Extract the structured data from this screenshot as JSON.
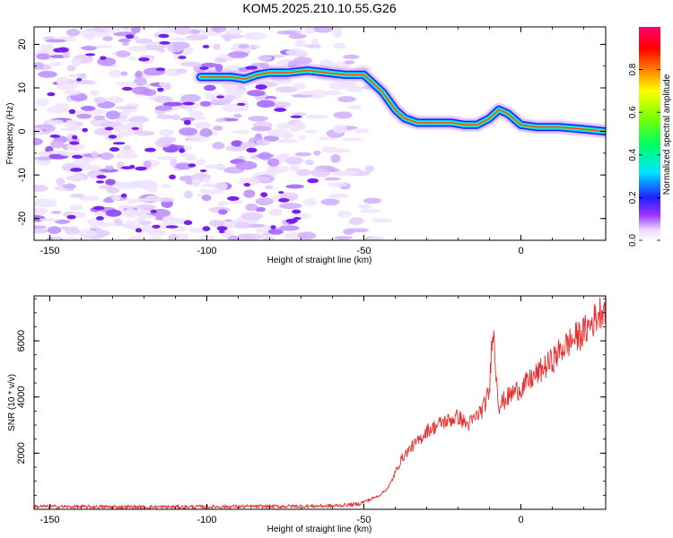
{
  "title": "KOM5.2025.210.10.55.G26",
  "chart_data": [
    {
      "type": "heatmap",
      "xlabel": "Height of straight line (km)",
      "ylabel": "Frequency (Hz)",
      "xlim": [
        -155,
        27
      ],
      "ylim": [
        -25,
        24
      ],
      "xticks": [
        -150,
        -100,
        -50,
        0
      ],
      "yticks": [
        -20,
        -10,
        0,
        10,
        20
      ],
      "ridge": {
        "x": [
          -102,
          -92,
          -88,
          -84,
          -80,
          -74,
          -68,
          -62,
          -56,
          -50,
          -47,
          -44,
          -40,
          -37,
          -33,
          -28,
          -22,
          -18,
          -14,
          -10,
          -7,
          -4,
          0,
          5,
          12,
          20,
          27
        ],
        "y": [
          12.5,
          12.5,
          12,
          13,
          13.5,
          13.5,
          14,
          13.5,
          13,
          13,
          11,
          9,
          5,
          3,
          2,
          2,
          2,
          1.5,
          1.5,
          3,
          5,
          4,
          1.5,
          1,
          1,
          0.5,
          0
        ]
      },
      "colorbar": {
        "label": "Normalized spectral amplitude",
        "range": [
          0,
          1
        ],
        "ticks": [
          "0.0",
          "0.2",
          "0.4",
          "0.6",
          "0.8"
        ],
        "tick_values": [
          0,
          0.2,
          0.4,
          0.6,
          0.8
        ]
      }
    },
    {
      "type": "line",
      "xlabel": "Height of straight line (km)",
      "ylabel": "SNR (10 * v/v)",
      "xlim": [
        -155,
        27
      ],
      "ylim": [
        0,
        7600
      ],
      "xticks": [
        -150,
        -100,
        -50,
        0
      ],
      "yticks": [
        2000,
        4000,
        6000
      ],
      "series": [
        {
          "color": "#e83030",
          "x": [
            -155,
            -140,
            -120,
            -100,
            -80,
            -60,
            -52,
            -48,
            -45,
            -42,
            -40,
            -38,
            -35,
            -32,
            -30,
            -28,
            -25,
            -22,
            -20,
            -17,
            -15,
            -12,
            -10,
            -9,
            -8,
            -7,
            -5,
            -2,
            0,
            3,
            6,
            10,
            13,
            16,
            20,
            23,
            25,
            27
          ],
          "y": [
            100,
            90,
            80,
            90,
            100,
            120,
            180,
            350,
            500,
            800,
            1300,
            1800,
            2200,
            2500,
            2800,
            2900,
            3100,
            3200,
            3300,
            3000,
            3200,
            3600,
            4200,
            6700,
            5000,
            3700,
            3900,
            4200,
            4300,
            4600,
            4900,
            5300,
            5700,
            6000,
            6300,
            6700,
            7000,
            7300
          ]
        }
      ]
    }
  ]
}
